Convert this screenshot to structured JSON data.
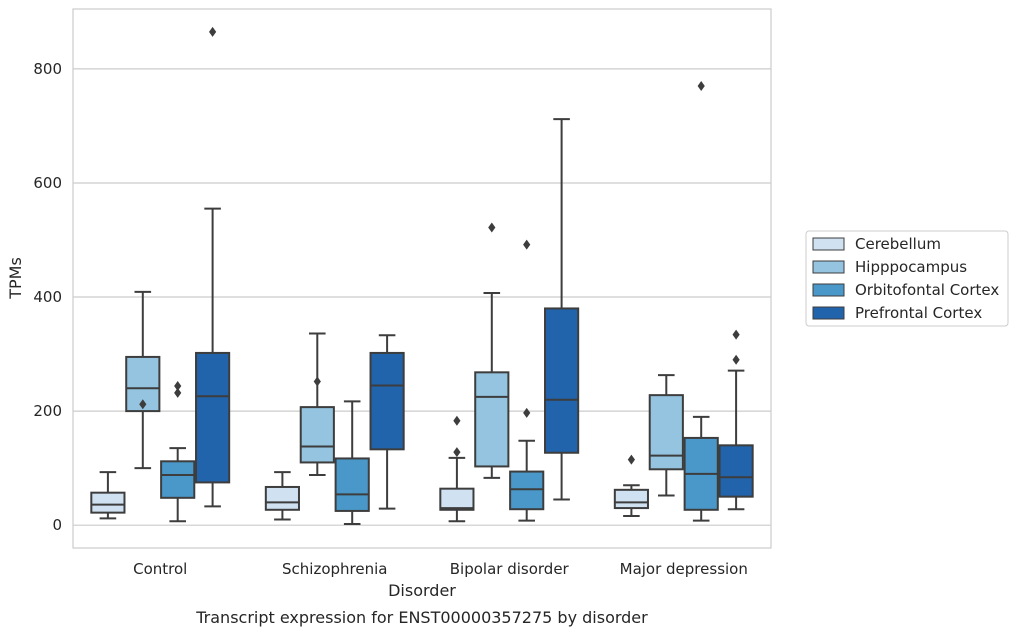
{
  "chart_data": {
    "type": "box",
    "xlabel": "Disorder",
    "ylabel": "TPMs",
    "caption": "Transcript expression for ENST00000357275 by disorder",
    "ylim": [
      -40,
      905
    ],
    "yticks": [
      0,
      200,
      400,
      600,
      800
    ],
    "grid": "horizontal",
    "legend_position": "right",
    "categories": [
      "Control",
      "Schizophrenia",
      "Bipolar disorder",
      "Major depression"
    ],
    "series": [
      {
        "name": "Cerebellum",
        "color": "#d0e1f2",
        "boxes": [
          {
            "whisker_low": 12,
            "q1": 22,
            "median": 36,
            "q3": 57,
            "whisker_high": 93,
            "outliers": []
          },
          {
            "whisker_low": 10,
            "q1": 27,
            "median": 40,
            "q3": 67,
            "whisker_high": 93,
            "outliers": []
          },
          {
            "whisker_low": 7,
            "q1": 27,
            "median": 30,
            "q3": 64,
            "whisker_high": 118,
            "outliers": [
              128,
              183
            ]
          },
          {
            "whisker_low": 16,
            "q1": 30,
            "median": 40,
            "q3": 62,
            "whisker_high": 70,
            "outliers": [
              115
            ]
          }
        ]
      },
      {
        "name": "Hipppocampus",
        "color": "#94c4df",
        "boxes": [
          {
            "whisker_low": 100,
            "q1": 200,
            "median": 240,
            "q3": 295,
            "whisker_high": 409,
            "outliers": [
              212
            ]
          },
          {
            "whisker_low": 88,
            "q1": 110,
            "median": 138,
            "q3": 207,
            "whisker_high": 336,
            "outliers": [
              252
            ]
          },
          {
            "whisker_low": 83,
            "q1": 103,
            "median": 225,
            "q3": 268,
            "whisker_high": 407,
            "outliers": [
              522
            ]
          },
          {
            "whisker_low": 52,
            "q1": 98,
            "median": 122,
            "q3": 228,
            "whisker_high": 263,
            "outliers": []
          }
        ]
      },
      {
        "name": "Orbitofontal Cortex",
        "color": "#4a98c9",
        "boxes": [
          {
            "whisker_low": 7,
            "q1": 48,
            "median": 88,
            "q3": 112,
            "whisker_high": 135,
            "outliers": [
              232,
              244
            ]
          },
          {
            "whisker_low": 2,
            "q1": 25,
            "median": 54,
            "q3": 117,
            "whisker_high": 217,
            "outliers": []
          },
          {
            "whisker_low": 8,
            "q1": 28,
            "median": 63,
            "q3": 94,
            "whisker_high": 148,
            "outliers": [
              197,
              492
            ]
          },
          {
            "whisker_low": 8,
            "q1": 27,
            "median": 90,
            "q3": 153,
            "whisker_high": 190,
            "outliers": [
              770
            ]
          }
        ]
      },
      {
        "name": "Prefrontal Cortex",
        "color": "#2164ab",
        "boxes": [
          {
            "whisker_low": 33,
            "q1": 75,
            "median": 226,
            "q3": 302,
            "whisker_high": 555,
            "outliers": [
              865
            ]
          },
          {
            "whisker_low": 29,
            "q1": 133,
            "median": 245,
            "q3": 302,
            "whisker_high": 333,
            "outliers": []
          },
          {
            "whisker_low": 45,
            "q1": 127,
            "median": 220,
            "q3": 380,
            "whisker_high": 712,
            "outliers": []
          },
          {
            "whisker_low": 28,
            "q1": 50,
            "median": 84,
            "q3": 140,
            "whisker_high": 271,
            "outliers": [
              290,
              334
            ]
          }
        ]
      }
    ]
  }
}
